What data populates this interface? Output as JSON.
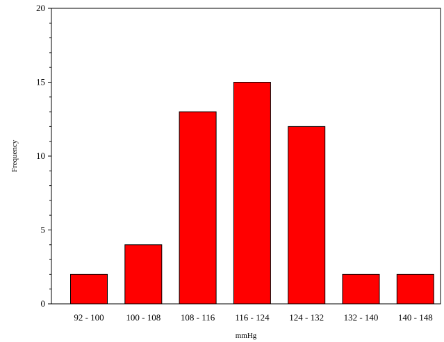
{
  "chart_data": {
    "type": "bar",
    "categories": [
      "92 - 100",
      "100 - 108",
      "108 - 116",
      "116 - 124",
      "124 - 132",
      "132 - 140",
      "140 - 148"
    ],
    "values": [
      2,
      4,
      13,
      15,
      12,
      2,
      2
    ],
    "title": "",
    "xlabel": "mmHg",
    "ylabel": "Frequency",
    "ylim": [
      0,
      20
    ],
    "yticks": [
      "0",
      "5",
      "10",
      "15",
      "20"
    ],
    "grid": false,
    "colors": {
      "bar_fill": "#ff0000",
      "bar_stroke": "#000000"
    }
  }
}
